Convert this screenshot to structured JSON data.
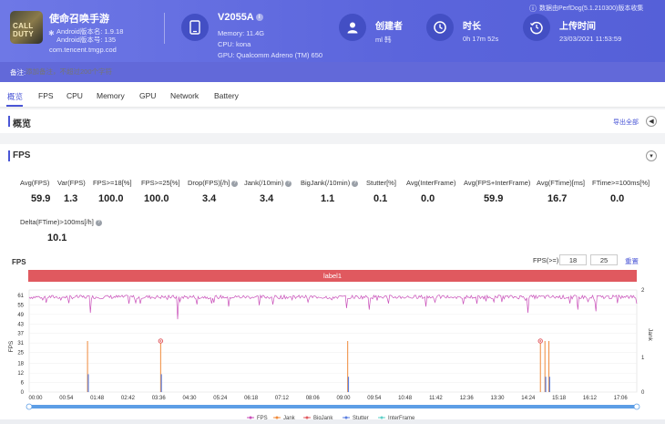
{
  "app": {
    "name": "使命召唤手游",
    "icon_text": "CALL DUTY",
    "android_version_name": "Android版本名: 1.9.18",
    "android_version_code": "Android版本号: 135",
    "package": "com.tencent.tmgp.cod"
  },
  "device": {
    "name": "V2055A",
    "memory": "Memory: 11.4G",
    "cpu": "CPU: kona",
    "gpu": "GPU: Qualcomm Adreno (TM) 650"
  },
  "creator": {
    "title": "创建者",
    "value": "ml 韩"
  },
  "duration": {
    "title": "时长",
    "value": "0h 17m 52s"
  },
  "upload": {
    "title": "上传时间",
    "value": "23/03/2021 11:53:59"
  },
  "generated_by": "数据由PerfDog(5.1.210300)版本收集",
  "remark": {
    "label": "备注:",
    "placeholder": "添加备注，不超过200个字符"
  },
  "tabs": [
    "概览",
    "FPS",
    "CPU",
    "Memory",
    "GPU",
    "Network",
    "Battery"
  ],
  "overview": {
    "title": "概览",
    "export_label": "导出全部"
  },
  "fps_section": {
    "title": "FPS"
  },
  "stats": [
    {
      "label": "Avg(FPS)",
      "value": "59.9",
      "help": false
    },
    {
      "label": "Var(FPS)",
      "value": "1.3",
      "help": false
    },
    {
      "label": "FPS>=18[%]",
      "value": "100.0",
      "help": false
    },
    {
      "label": "FPS>=25[%]",
      "value": "100.0",
      "help": false
    },
    {
      "label": "Drop(FPS)[/h]",
      "value": "3.4",
      "help": true
    },
    {
      "label": "Jank(/10min)",
      "value": "3.4",
      "help": true
    },
    {
      "label": "BigJank(/10min)",
      "value": "1.1",
      "help": true
    },
    {
      "label": "Stutter[%]",
      "value": "0.1",
      "help": false
    },
    {
      "label": "Avg(InterFrame)",
      "value": "0.0",
      "help": false
    },
    {
      "label": "Avg(FPS+InterFrame)",
      "value": "59.9",
      "help": false
    },
    {
      "label": "Avg(FTime)[ms]",
      "value": "16.7",
      "help": false
    },
    {
      "label": "FTime>=100ms[%]",
      "value": "0.0",
      "help": false
    },
    {
      "label": "Delta(FTime)>100ms[/h]",
      "value": "10.1",
      "help": true
    }
  ],
  "chart_controls": {
    "title": "FPS",
    "threshold_label": "FPS(>=)",
    "threshold_1": "18",
    "threshold_2": "25",
    "reset_label": "重置",
    "band_label": "label1"
  },
  "colors": {
    "header": "#5b65dc",
    "accent": "#4a56d6",
    "fps": "#c94fb9",
    "jank": "#f08a3a",
    "bigjank": "#e0595f",
    "stutter": "#5b7fe0",
    "interframe": "#5fd0c8"
  },
  "chart_data": {
    "type": "line",
    "ylabel": "FPS",
    "y2label": "Jank",
    "ylim": [
      0,
      61
    ],
    "y_ticks": [
      0,
      6,
      12,
      18,
      25,
      31,
      37,
      43,
      49,
      55,
      61
    ],
    "y2lim": [
      0,
      2
    ],
    "y2_ticks": [
      0,
      1,
      2
    ],
    "x_ticks": [
      "00:00",
      "00:54",
      "01:48",
      "02:42",
      "03:36",
      "04:30",
      "05:24",
      "06:18",
      "07:12",
      "08:06",
      "09:00",
      "09:54",
      "10:48",
      "11:42",
      "12:36",
      "13:30",
      "14:24",
      "15:18",
      "16:12",
      "17:06"
    ],
    "x_max_seconds": 1072,
    "fps_baseline": 60,
    "fps_dips": [
      {
        "t": 108,
        "fps": 50
      },
      {
        "t": 262,
        "fps": 46
      },
      {
        "t": 352,
        "fps": 54
      },
      {
        "t": 560,
        "fps": 53
      },
      {
        "t": 600,
        "fps": 52
      },
      {
        "t": 700,
        "fps": 54
      },
      {
        "t": 880,
        "fps": 50
      },
      {
        "t": 968,
        "fps": 52
      },
      {
        "t": 1000,
        "fps": 51
      }
    ],
    "jank_events": [
      {
        "t": 103,
        "value": 1
      },
      {
        "t": 232,
        "value": 1
      },
      {
        "t": 562,
        "value": 1
      },
      {
        "t": 902,
        "value": 1
      },
      {
        "t": 910,
        "value": 1
      },
      {
        "t": 917,
        "value": 1
      }
    ],
    "bigjank_events": [
      {
        "t": 232,
        "value": 1
      },
      {
        "t": 902,
        "value": 1
      }
    ],
    "stutter_events": [
      {
        "t": 103,
        "value": 0.35
      },
      {
        "t": 232,
        "value": 0.35
      },
      {
        "t": 562,
        "value": 0.3
      },
      {
        "t": 910,
        "value": 0.3
      },
      {
        "t": 917,
        "value": 0.3
      }
    ],
    "legend": [
      "FPS",
      "Jank",
      "BigJank",
      "Stutter",
      "InterFrame"
    ],
    "legend_position": "bottom"
  }
}
